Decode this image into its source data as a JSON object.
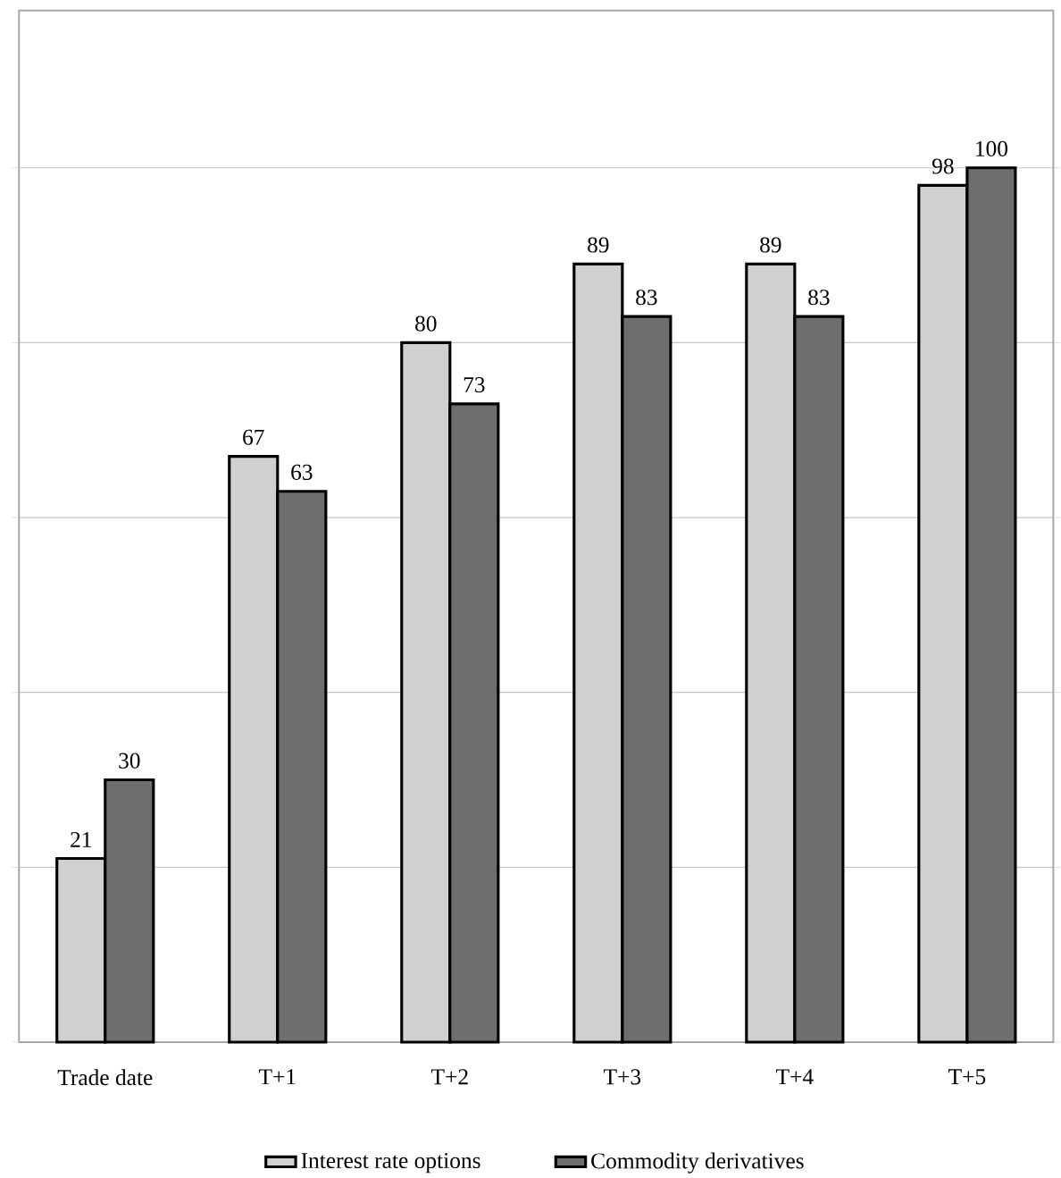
{
  "chart_data": {
    "type": "bar",
    "categories": [
      "Trade date",
      "T+1",
      "T+2",
      "T+3",
      "T+4",
      "T+5"
    ],
    "series": [
      {
        "name": "Interest rate options",
        "color": "#d0d0d0",
        "values": [
          21,
          67,
          80,
          89,
          89,
          98
        ]
      },
      {
        "name": "Commodity derivatives",
        "color": "#6e6e6e",
        "values": [
          30,
          63,
          73,
          83,
          83,
          100
        ]
      }
    ],
    "tick_labels": "x",
    "grid": "y",
    "data_labels": true,
    "legend": "bottom"
  }
}
